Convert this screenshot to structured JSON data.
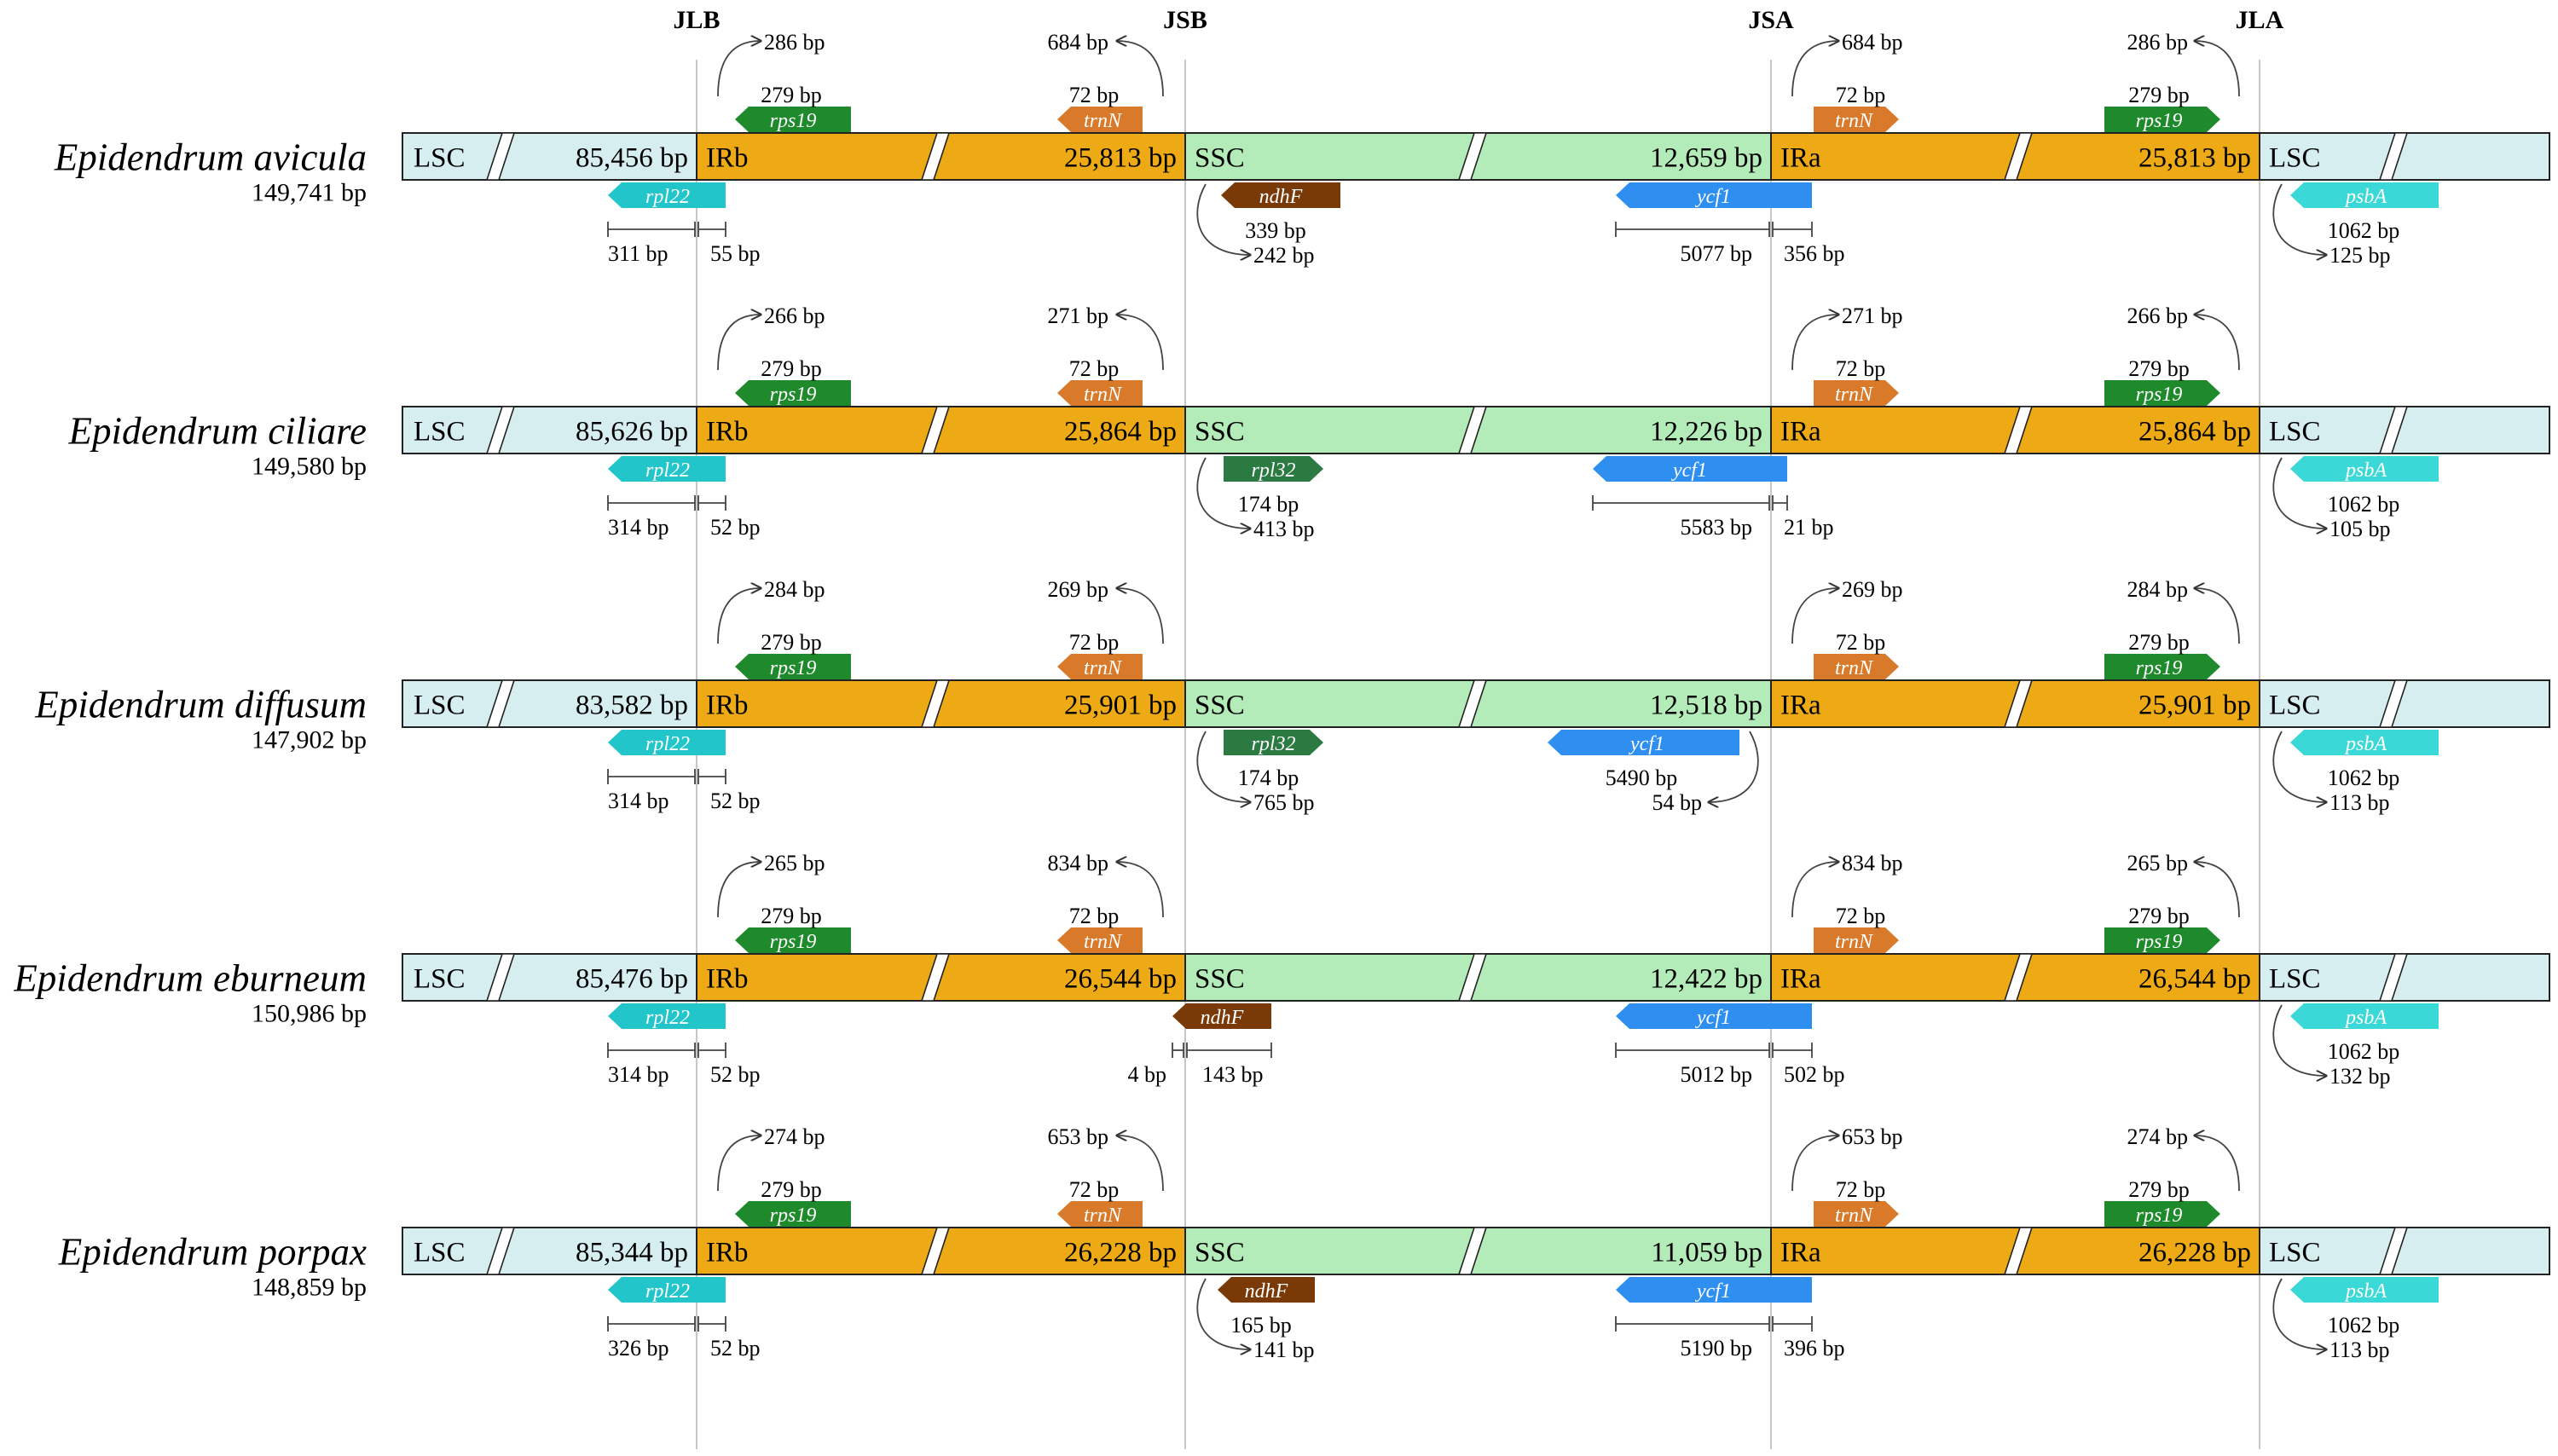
{
  "title_hidden": "",
  "junctions": [
    "JLB",
    "JSB",
    "JSA",
    "JLA"
  ],
  "region_labels": {
    "lsc": "LSC",
    "irb": "IRb",
    "ssc": "SSC",
    "ira": "IRa"
  },
  "colors": {
    "lsc": "#d6eef0",
    "ir": "#eeaa14",
    "ssc": "#b3ecb8",
    "rpl22": "#21c5ca",
    "psbA": "#3ad8d6",
    "rps19": "#1f8a2c",
    "trnN": "#d97a2a",
    "ndhF": "#7a3a08",
    "rpl32": "#2a7a42",
    "ycf1": "#2f8ff0"
  },
  "gene_names": {
    "rps19": "rps19",
    "trnN": "trnN",
    "rpl22": "rpl22",
    "psbA": "psbA",
    "ndhF": "ndhF",
    "rpl32": "rpl32",
    "ycf1": "ycf1"
  },
  "species": [
    {
      "name": "Epidendrum avicula",
      "total": "149,741 bp",
      "lsc": "85,456 bp",
      "ir": "25,813 bp",
      "ssc": "12,659 bp",
      "rps19_left_dist": "286 bp",
      "rps19_len": "279 bp",
      "trnN_left_dist": "684 bp",
      "trnN_len": "72 bp",
      "trnN_right_dist": "684 bp",
      "trnN_right_len": "72 bp",
      "rps19_right_dist": "286 bp",
      "rps19_right_len": "279 bp",
      "rpl22_lsc": "311 bp",
      "rpl22_ir": "55 bp",
      "ssc_gene": "ndhF",
      "ssc_gene_key": "ndhF",
      "ssc_gene_len": "339 bp",
      "ssc_gene_dist": "242 bp",
      "ycf1_ssc": "5077 bp",
      "ycf1_ir": "356 bp",
      "ycf1_style": "span",
      "psbA_len": "1062 bp",
      "psbA_dist": "125 bp"
    },
    {
      "name": "Epidendrum ciliare",
      "total": "149,580 bp",
      "lsc": "85,626 bp",
      "ir": "25,864 bp",
      "ssc": "12,226 bp",
      "rps19_left_dist": "266 bp",
      "rps19_len": "279 bp",
      "trnN_left_dist": "271 bp",
      "trnN_len": "72 bp",
      "trnN_right_dist": "271 bp",
      "trnN_right_len": "72 bp",
      "rps19_right_dist": "266 bp",
      "rps19_right_len": "279 bp",
      "rpl22_lsc": "314 bp",
      "rpl22_ir": "52 bp",
      "ssc_gene": "rpl32",
      "ssc_gene_key": "rpl32",
      "ssc_gene_len": "174 bp",
      "ssc_gene_dist": "413 bp",
      "ycf1_ssc": "5583 bp",
      "ycf1_ir": "21 bp",
      "ycf1_style": "span",
      "psbA_len": "1062 bp",
      "psbA_dist": "105 bp"
    },
    {
      "name": "Epidendrum diffusum",
      "total": "147,902 bp",
      "lsc": "83,582 bp",
      "ir": "25,901 bp",
      "ssc": "12,518 bp",
      "rps19_left_dist": "284 bp",
      "rps19_len": "279 bp",
      "trnN_left_dist": "269 bp",
      "trnN_len": "72 bp",
      "trnN_right_dist": "269 bp",
      "trnN_right_len": "72 bp",
      "rps19_right_dist": "284 bp",
      "rps19_right_len": "279 bp",
      "rpl22_lsc": "314 bp",
      "rpl22_ir": "52 bp",
      "ssc_gene": "rpl32",
      "ssc_gene_key": "rpl32",
      "ssc_gene_len": "174 bp",
      "ssc_gene_dist": "765 bp",
      "ycf1_ssc": "5490 bp",
      "ycf1_ir": "54 bp",
      "ycf1_style": "inside",
      "psbA_len": "1062 bp",
      "psbA_dist": "113 bp"
    },
    {
      "name": "Epidendrum eburneum",
      "total": "150,986 bp",
      "lsc": "85,476 bp",
      "ir": "26,544 bp",
      "ssc": "12,422 bp",
      "rps19_left_dist": "265 bp",
      "rps19_len": "279 bp",
      "trnN_left_dist": "834 bp",
      "trnN_len": "72 bp",
      "trnN_right_dist": "834 bp",
      "trnN_right_len": "72 bp",
      "rps19_right_dist": "265 bp",
      "rps19_right_len": "279 bp",
      "rpl22_lsc": "314 bp",
      "rpl22_ir": "52 bp",
      "ssc_gene": "ndhF",
      "ssc_gene_key": "ndhF",
      "ssc_gene_len": "143 bp",
      "ssc_gene_dist": "4 bp",
      "ycf1_ssc": "5012 bp",
      "ycf1_ir": "502 bp",
      "ycf1_style": "span",
      "psbA_len": "1062 bp",
      "psbA_dist": "132 bp"
    },
    {
      "name": "Epidendrum porpax",
      "total": "148,859 bp",
      "lsc": "85,344 bp",
      "ir": "26,228 bp",
      "ssc": "11,059 bp",
      "rps19_left_dist": "274 bp",
      "rps19_len": "279 bp",
      "trnN_left_dist": "653 bp",
      "trnN_len": "72 bp",
      "trnN_right_dist": "653 bp",
      "trnN_right_len": "72 bp",
      "rps19_right_dist": "274 bp",
      "rps19_right_len": "279 bp",
      "rpl22_lsc": "326 bp",
      "rpl22_ir": "52 bp",
      "ssc_gene": "ndhF",
      "ssc_gene_key": "ndhF",
      "ssc_gene_len": "165 bp",
      "ssc_gene_dist": "141 bp",
      "ycf1_ssc": "5190 bp",
      "ycf1_ir": "396 bp",
      "ycf1_style": "span",
      "psbA_len": "1062 bp",
      "psbA_dist": "113 bp"
    }
  ]
}
